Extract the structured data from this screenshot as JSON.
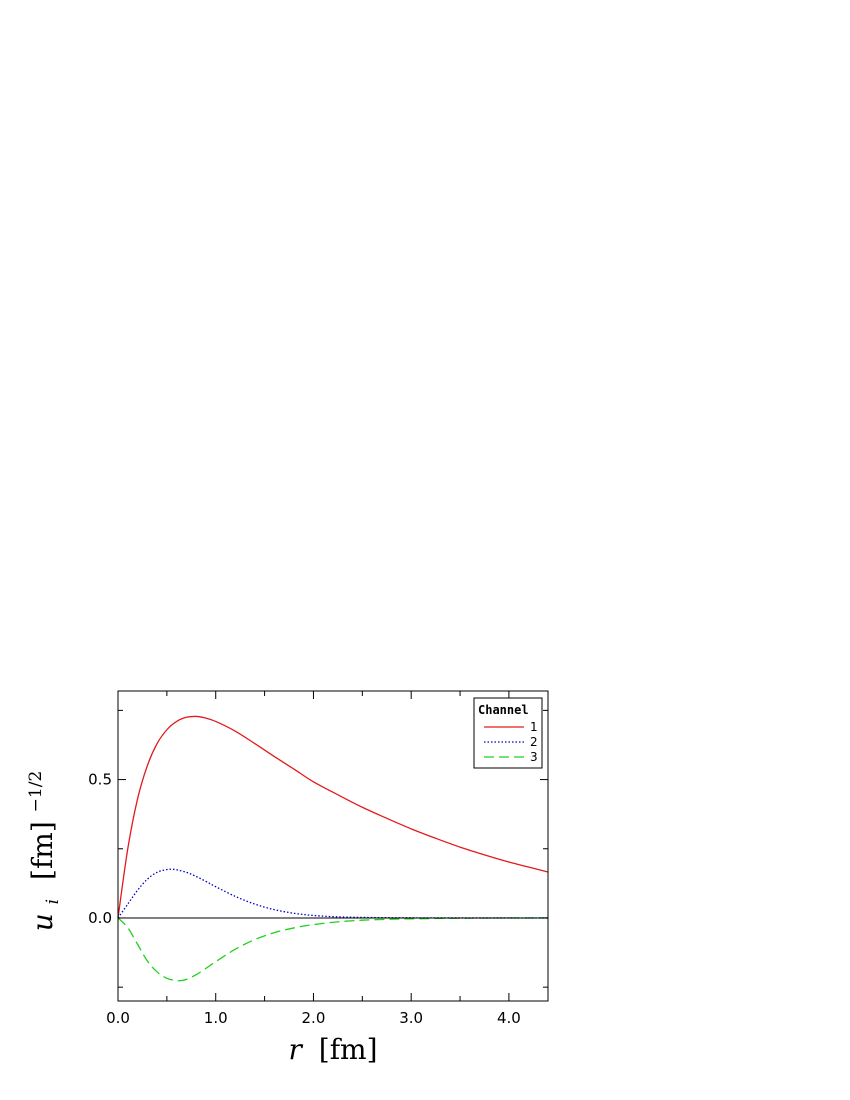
{
  "chart_data": {
    "type": "line",
    "xlabel": {
      "symbol": "r",
      "unit": "[fm]"
    },
    "ylabel": {
      "symbol": "u",
      "subscript": "i",
      "unit": "[fm]",
      "superscript": "−1/2"
    },
    "xlim": [
      0,
      4.4
    ],
    "ylim": [
      -0.3,
      0.82
    ],
    "x_ticks": [
      {
        "value": 0.0,
        "label": "0.0"
      },
      {
        "value": 1.0,
        "label": "1.0"
      },
      {
        "value": 2.0,
        "label": "2.0"
      },
      {
        "value": 3.0,
        "label": "3.0"
      },
      {
        "value": 4.0,
        "label": "4.0"
      }
    ],
    "x_minor_ticks": [
      0.5,
      1.5,
      2.5,
      3.5
    ],
    "y_ticks": [
      {
        "value": 0.0,
        "label": "0.0"
      },
      {
        "value": 0.5,
        "label": "0.5"
      }
    ],
    "y_minor_ticks": [
      -0.25,
      0.25,
      0.75
    ],
    "zero_line": true,
    "grid": false,
    "legend": {
      "title": "Channel",
      "placement": "top-right"
    },
    "series": [
      {
        "name": "1",
        "color": "#e31a1c",
        "style": "solid",
        "x": [
          0,
          0.1,
          0.2,
          0.3,
          0.4,
          0.5,
          0.6,
          0.7,
          0.8,
          0.9,
          1.0,
          1.2,
          1.4,
          1.6,
          1.8,
          2.0,
          2.25,
          2.5,
          2.75,
          3.0,
          3.25,
          3.5,
          3.75,
          4.0,
          4.2,
          4.4
        ],
        "y": [
          0,
          0.25,
          0.43,
          0.55,
          0.63,
          0.68,
          0.71,
          0.725,
          0.728,
          0.722,
          0.71,
          0.675,
          0.63,
          0.583,
          0.538,
          0.492,
          0.445,
          0.4,
          0.36,
          0.322,
          0.288,
          0.256,
          0.228,
          0.202,
          0.184,
          0.166
        ]
      },
      {
        "name": "2",
        "color": "#0000cc",
        "style": "dotted",
        "x": [
          0,
          0.1,
          0.2,
          0.3,
          0.4,
          0.5,
          0.55,
          0.6,
          0.7,
          0.8,
          0.9,
          1.0,
          1.2,
          1.4,
          1.6,
          1.8,
          2.0,
          2.25,
          2.5,
          2.75,
          3.0,
          3.5,
          4.0,
          4.4
        ],
        "y": [
          0,
          0.05,
          0.1,
          0.14,
          0.165,
          0.175,
          0.176,
          0.174,
          0.165,
          0.15,
          0.132,
          0.113,
          0.078,
          0.05,
          0.03,
          0.017,
          0.009,
          0.004,
          0.002,
          0.001,
          0.0005,
          0.0001,
          0.0,
          0.0
        ]
      },
      {
        "name": "3",
        "color": "#1fd11f",
        "style": "dashed",
        "x": [
          0,
          0.1,
          0.2,
          0.3,
          0.4,
          0.5,
          0.6,
          0.65,
          0.7,
          0.8,
          0.9,
          1.0,
          1.2,
          1.4,
          1.6,
          1.8,
          2.0,
          2.25,
          2.5,
          2.75,
          3.0,
          3.5,
          4.0,
          4.4
        ],
        "y": [
          0,
          -0.035,
          -0.095,
          -0.155,
          -0.195,
          -0.218,
          -0.226,
          -0.226,
          -0.222,
          -0.205,
          -0.182,
          -0.158,
          -0.113,
          -0.078,
          -0.053,
          -0.036,
          -0.024,
          -0.014,
          -0.008,
          -0.005,
          -0.003,
          -0.001,
          0.0,
          0.0
        ]
      }
    ]
  }
}
